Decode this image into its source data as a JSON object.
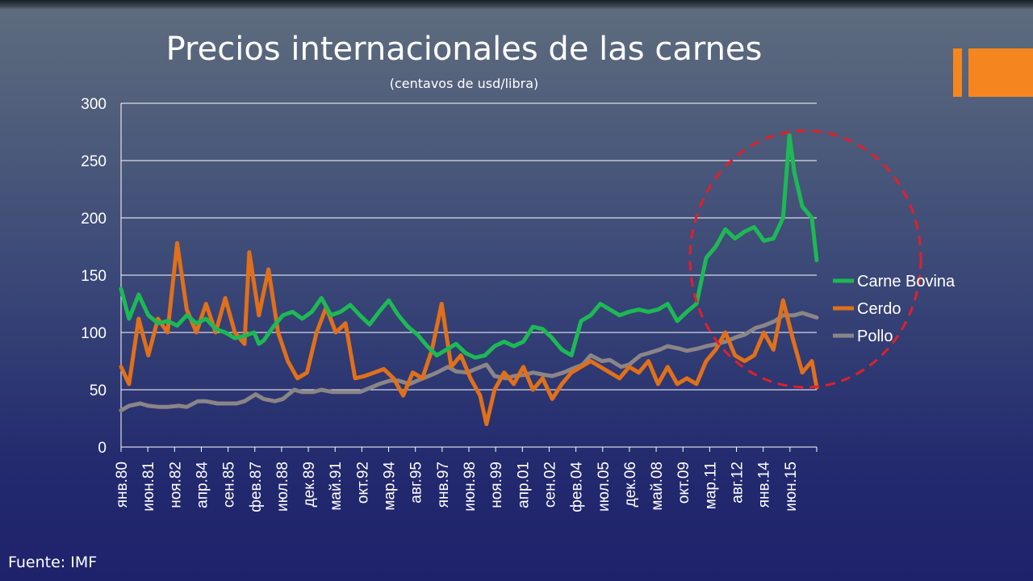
{
  "title": "Precios internacionales de las carnes",
  "subtitle": "(centavos de usd/libra)",
  "source": "Fuente: IMF",
  "colors": {
    "carne_bovina": "#1db954",
    "cerdo": "#e0701a",
    "pollo": "#8a8587",
    "highlight": "#e0202a",
    "accent": "#f5861f"
  },
  "chart_data": {
    "type": "line",
    "title": "Precios internacionales de las carnes",
    "subtitle": "(centavos de usd/libra)",
    "ylim": [
      0,
      300
    ],
    "yticks": [
      0,
      50,
      100,
      150,
      200,
      250,
      300
    ],
    "xtick_labels": [
      "янв.80",
      "июн.81",
      "ноя.82",
      "апр.84",
      "сен.85",
      "фев.87",
      "июл.88",
      "дек.89",
      "май.91",
      "окт.92",
      "мар.94",
      "авг.95",
      "янв.97",
      "июн.98",
      "ноя.99",
      "апр.01",
      "сен.02",
      "фев.04",
      "июл.05",
      "дек.06",
      "май.08",
      "окт.09",
      "мар.11",
      "авг.12",
      "янв.14",
      "июн.15"
    ],
    "x_start": "1980-01",
    "x_end": "2016-03",
    "grid": "horizontal",
    "legend_position": "right",
    "highlight": "dashed red ellipse around 2009-2016",
    "series": [
      {
        "name": "Carne Bovina",
        "color": "#1db954",
        "points": [
          [
            "1980-01",
            138
          ],
          [
            "1980-06",
            112
          ],
          [
            "1980-12",
            133
          ],
          [
            "1981-06",
            115
          ],
          [
            "1981-12",
            108
          ],
          [
            "1982-06",
            110
          ],
          [
            "1982-12",
            106
          ],
          [
            "1983-06",
            115
          ],
          [
            "1983-12",
            108
          ],
          [
            "1984-06",
            112
          ],
          [
            "1984-12",
            103
          ],
          [
            "1985-06",
            100
          ],
          [
            "1985-12",
            95
          ],
          [
            "1986-06",
            97
          ],
          [
            "1986-12",
            100
          ],
          [
            "1987-03",
            90
          ],
          [
            "1987-06",
            93
          ],
          [
            "1987-12",
            105
          ],
          [
            "1988-06",
            115
          ],
          [
            "1988-12",
            118
          ],
          [
            "1989-06",
            112
          ],
          [
            "1989-12",
            118
          ],
          [
            "1990-06",
            130
          ],
          [
            "1990-12",
            115
          ],
          [
            "1991-06",
            118
          ],
          [
            "1991-12",
            124
          ],
          [
            "1992-06",
            115
          ],
          [
            "1992-12",
            107
          ],
          [
            "1993-06",
            118
          ],
          [
            "1993-12",
            128
          ],
          [
            "1994-06",
            115
          ],
          [
            "1994-12",
            105
          ],
          [
            "1995-06",
            98
          ],
          [
            "1995-12",
            88
          ],
          [
            "1996-06",
            80
          ],
          [
            "1996-12",
            85
          ],
          [
            "1997-06",
            90
          ],
          [
            "1997-12",
            82
          ],
          [
            "1998-06",
            78
          ],
          [
            "1998-12",
            80
          ],
          [
            "1999-06",
            88
          ],
          [
            "1999-12",
            92
          ],
          [
            "2000-06",
            88
          ],
          [
            "2000-12",
            92
          ],
          [
            "2001-06",
            105
          ],
          [
            "2001-12",
            103
          ],
          [
            "2002-06",
            95
          ],
          [
            "2002-12",
            85
          ],
          [
            "2003-06",
            80
          ],
          [
            "2003-12",
            110
          ],
          [
            "2004-06",
            115
          ],
          [
            "2004-12",
            125
          ],
          [
            "2005-06",
            120
          ],
          [
            "2005-12",
            115
          ],
          [
            "2006-06",
            118
          ],
          [
            "2006-12",
            120
          ],
          [
            "2007-06",
            118
          ],
          [
            "2007-12",
            120
          ],
          [
            "2008-06",
            125
          ],
          [
            "2008-12",
            110
          ],
          [
            "2009-06",
            118
          ],
          [
            "2009-12",
            125
          ],
          [
            "2010-06",
            165
          ],
          [
            "2010-12",
            175
          ],
          [
            "2011-06",
            190
          ],
          [
            "2011-12",
            182
          ],
          [
            "2012-06",
            188
          ],
          [
            "2012-12",
            192
          ],
          [
            "2013-06",
            180
          ],
          [
            "2013-12",
            182
          ],
          [
            "2014-06",
            200
          ],
          [
            "2014-10",
            272
          ],
          [
            "2015-01",
            240
          ],
          [
            "2015-06",
            210
          ],
          [
            "2015-12",
            200
          ],
          [
            "2016-03",
            163
          ]
        ]
      },
      {
        "name": "Cerdo",
        "color": "#e0701a",
        "points": [
          [
            "1980-01",
            70
          ],
          [
            "1980-06",
            55
          ],
          [
            "1980-12",
            112
          ],
          [
            "1981-06",
            80
          ],
          [
            "1981-12",
            112
          ],
          [
            "1982-06",
            100
          ],
          [
            "1982-12",
            178
          ],
          [
            "1983-06",
            120
          ],
          [
            "1983-12",
            100
          ],
          [
            "1984-06",
            125
          ],
          [
            "1984-12",
            100
          ],
          [
            "1985-06",
            130
          ],
          [
            "1985-12",
            100
          ],
          [
            "1986-06",
            90
          ],
          [
            "1986-09",
            170
          ],
          [
            "1987-03",
            115
          ],
          [
            "1987-09",
            155
          ],
          [
            "1988-03",
            100
          ],
          [
            "1988-09",
            75
          ],
          [
            "1989-03",
            60
          ],
          [
            "1989-09",
            65
          ],
          [
            "1990-03",
            100
          ],
          [
            "1990-09",
            122
          ],
          [
            "1991-03",
            100
          ],
          [
            "1991-09",
            108
          ],
          [
            "1992-03",
            60
          ],
          [
            "1992-09",
            62
          ],
          [
            "1993-03",
            65
          ],
          [
            "1993-09",
            68
          ],
          [
            "1994-03",
            60
          ],
          [
            "1994-09",
            45
          ],
          [
            "1995-03",
            65
          ],
          [
            "1995-09",
            60
          ],
          [
            "1996-03",
            85
          ],
          [
            "1996-09",
            125
          ],
          [
            "1997-03",
            70
          ],
          [
            "1997-09",
            80
          ],
          [
            "1998-03",
            60
          ],
          [
            "1998-09",
            45
          ],
          [
            "1999-01",
            20
          ],
          [
            "1999-06",
            50
          ],
          [
            "1999-12",
            65
          ],
          [
            "2000-06",
            55
          ],
          [
            "2000-12",
            70
          ],
          [
            "2001-06",
            50
          ],
          [
            "2001-12",
            60
          ],
          [
            "2002-06",
            42
          ],
          [
            "2002-12",
            55
          ],
          [
            "2003-06",
            65
          ],
          [
            "2003-12",
            70
          ],
          [
            "2004-06",
            75
          ],
          [
            "2004-12",
            70
          ],
          [
            "2005-06",
            65
          ],
          [
            "2005-12",
            60
          ],
          [
            "2006-06",
            70
          ],
          [
            "2006-12",
            65
          ],
          [
            "2007-06",
            75
          ],
          [
            "2007-12",
            55
          ],
          [
            "2008-06",
            70
          ],
          [
            "2008-12",
            55
          ],
          [
            "2009-06",
            60
          ],
          [
            "2009-12",
            55
          ],
          [
            "2010-06",
            75
          ],
          [
            "2010-12",
            85
          ],
          [
            "2011-06",
            100
          ],
          [
            "2011-12",
            80
          ],
          [
            "2012-06",
            75
          ],
          [
            "2012-12",
            80
          ],
          [
            "2013-06",
            100
          ],
          [
            "2013-12",
            85
          ],
          [
            "2014-06",
            128
          ],
          [
            "2014-12",
            95
          ],
          [
            "2015-06",
            65
          ],
          [
            "2015-12",
            75
          ],
          [
            "2016-03",
            52
          ]
        ]
      },
      {
        "name": "Pollo",
        "color": "#8a8587",
        "points": [
          [
            "1980-01",
            32
          ],
          [
            "1980-06",
            36
          ],
          [
            "1981-01",
            38
          ],
          [
            "1981-06",
            36
          ],
          [
            "1982-01",
            35
          ],
          [
            "1982-06",
            35
          ],
          [
            "1983-01",
            36
          ],
          [
            "1983-06",
            35
          ],
          [
            "1984-01",
            40
          ],
          [
            "1984-06",
            40
          ],
          [
            "1985-01",
            38
          ],
          [
            "1985-06",
            38
          ],
          [
            "1986-01",
            38
          ],
          [
            "1986-06",
            40
          ],
          [
            "1987-01",
            46
          ],
          [
            "1987-06",
            42
          ],
          [
            "1988-01",
            40
          ],
          [
            "1988-06",
            42
          ],
          [
            "1989-01",
            50
          ],
          [
            "1989-06",
            48
          ],
          [
            "1990-01",
            48
          ],
          [
            "1990-06",
            50
          ],
          [
            "1991-01",
            48
          ],
          [
            "1991-06",
            48
          ],
          [
            "1992-01",
            48
          ],
          [
            "1992-06",
            48
          ],
          [
            "1993-01",
            52
          ],
          [
            "1993-06",
            55
          ],
          [
            "1994-01",
            58
          ],
          [
            "1994-06",
            58
          ],
          [
            "1995-01",
            55
          ],
          [
            "1995-06",
            58
          ],
          [
            "1996-01",
            62
          ],
          [
            "1996-06",
            65
          ],
          [
            "1997-01",
            70
          ],
          [
            "1997-06",
            66
          ],
          [
            "1998-01",
            65
          ],
          [
            "1998-06",
            68
          ],
          [
            "1999-01",
            72
          ],
          [
            "1999-06",
            62
          ],
          [
            "2000-01",
            60
          ],
          [
            "2000-06",
            62
          ],
          [
            "2001-01",
            63
          ],
          [
            "2001-06",
            65
          ],
          [
            "2002-01",
            63
          ],
          [
            "2002-06",
            62
          ],
          [
            "2003-01",
            65
          ],
          [
            "2003-06",
            68
          ],
          [
            "2004-01",
            72
          ],
          [
            "2004-06",
            80
          ],
          [
            "2005-01",
            75
          ],
          [
            "2005-06",
            76
          ],
          [
            "2006-01",
            70
          ],
          [
            "2006-06",
            72
          ],
          [
            "2007-01",
            80
          ],
          [
            "2007-06",
            82
          ],
          [
            "2008-01",
            85
          ],
          [
            "2008-06",
            88
          ],
          [
            "2009-01",
            86
          ],
          [
            "2009-06",
            84
          ],
          [
            "2010-01",
            86
          ],
          [
            "2010-06",
            88
          ],
          [
            "2011-01",
            90
          ],
          [
            "2011-06",
            92
          ],
          [
            "2012-01",
            96
          ],
          [
            "2012-06",
            98
          ],
          [
            "2013-01",
            104
          ],
          [
            "2013-06",
            106
          ],
          [
            "2014-01",
            110
          ],
          [
            "2014-06",
            115
          ],
          [
            "2015-01",
            115
          ],
          [
            "2015-06",
            117
          ],
          [
            "2016-03",
            113
          ]
        ]
      }
    ]
  }
}
